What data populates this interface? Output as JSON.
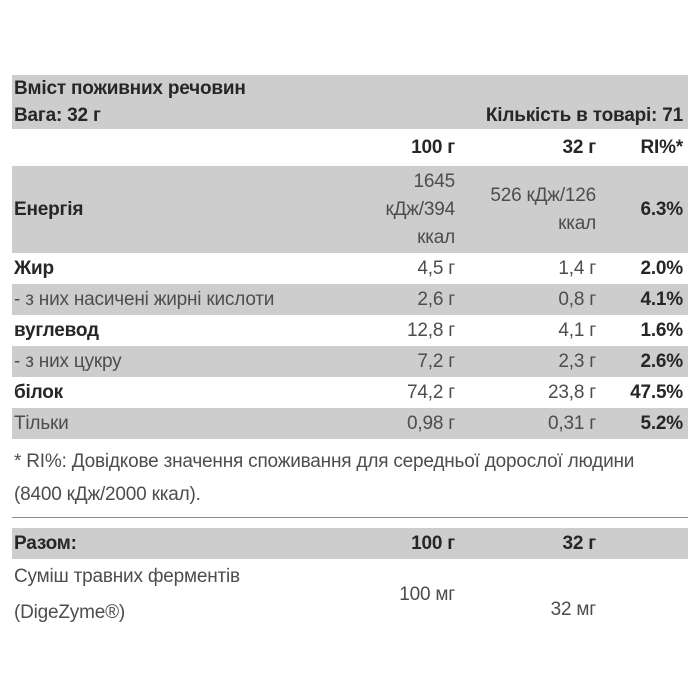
{
  "nutrition_table": {
    "title": "Вміст поживних речовин",
    "weight": "Вага: 32 г",
    "quantity": "Кількість в товарі: 71",
    "columns": [
      "100 г",
      "32 г",
      "RI%*"
    ],
    "rows": [
      {
        "label": "Енергія",
        "bold": true,
        "per_100g": "1645 кДж/394 ккал",
        "per_32g": "526 кДж/126 ккал",
        "ri": "6.3%"
      },
      {
        "label": "Жир",
        "bold": true,
        "per_100g": "4,5 г",
        "per_32g": "1,4 г",
        "ri": "2.0%"
      },
      {
        "label": "- з них насичені жирні кислоти",
        "bold": false,
        "per_100g": "2,6 г",
        "per_32g": "0,8 г",
        "ri": "4.1%"
      },
      {
        "label": "вуглевод",
        "bold": true,
        "per_100g": "12,8 г",
        "per_32g": "4,1 г",
        "ri": "1.6%"
      },
      {
        "label": "- з них цукру",
        "bold": false,
        "per_100g": "7,2 г",
        "per_32g": "2,3 г",
        "ri": "2.6%"
      },
      {
        "label": "білок",
        "bold": true,
        "per_100g": "74,2 г",
        "per_32g": "23,8 г",
        "ri": "47.5%"
      },
      {
        "label": "Тільки",
        "bold": false,
        "per_100g": "0,98 г",
        "per_32g": "0,31 г",
        "ri": "5.2%"
      }
    ],
    "footnote": "* RI%: Довідкове значення споживання для середньої дорослої людини (8400 кДж/2000 ккал).",
    "totals": {
      "label": "Разом:",
      "per_100g": "100 г",
      "per_32g": "32 г"
    },
    "supplement": {
      "label": "Суміш травних ферментів (DigeZyme®)",
      "per_100g": "100 мг",
      "per_32g": "32 мг"
    },
    "colors": {
      "shade_bg": "#cdcdcd",
      "divider": "#8c8c8c",
      "text_regular": "#4d4d4d",
      "text_bold": "#262626"
    }
  }
}
